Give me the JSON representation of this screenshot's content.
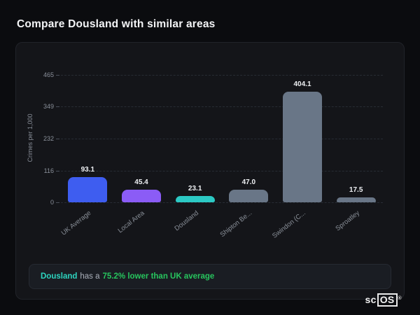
{
  "page": {
    "title": "Compare Dousland with similar areas"
  },
  "chart_data": {
    "type": "bar",
    "title": "",
    "xlabel": "",
    "ylabel": "Crimes per 1,000",
    "ylim": [
      0,
      465
    ],
    "yticks": [
      465,
      349,
      232,
      116,
      0
    ],
    "grid": "dashed-horizontal",
    "legend": "none",
    "categories": [
      "UK Average",
      "Local Area",
      "Dousland",
      "Shipton Be...",
      "Swindon (C...",
      "Sproatley"
    ],
    "values": [
      93.1,
      45.4,
      23.1,
      47.0,
      404.1,
      17.5
    ],
    "bar_colors": [
      "#3e5df0",
      "#8b5cf6",
      "#2cc9c4",
      "#697687",
      "#697687",
      "#697687"
    ]
  },
  "footer": {
    "area_name": "Dousland",
    "middle_text": "has a",
    "highlight_text": "75.2% lower than UK average",
    "area_color": "#2dd4bf",
    "highlight_color": "#27c55e"
  },
  "logo": {
    "prefix": "sc",
    "suffix": "OS",
    "registered": "®"
  }
}
